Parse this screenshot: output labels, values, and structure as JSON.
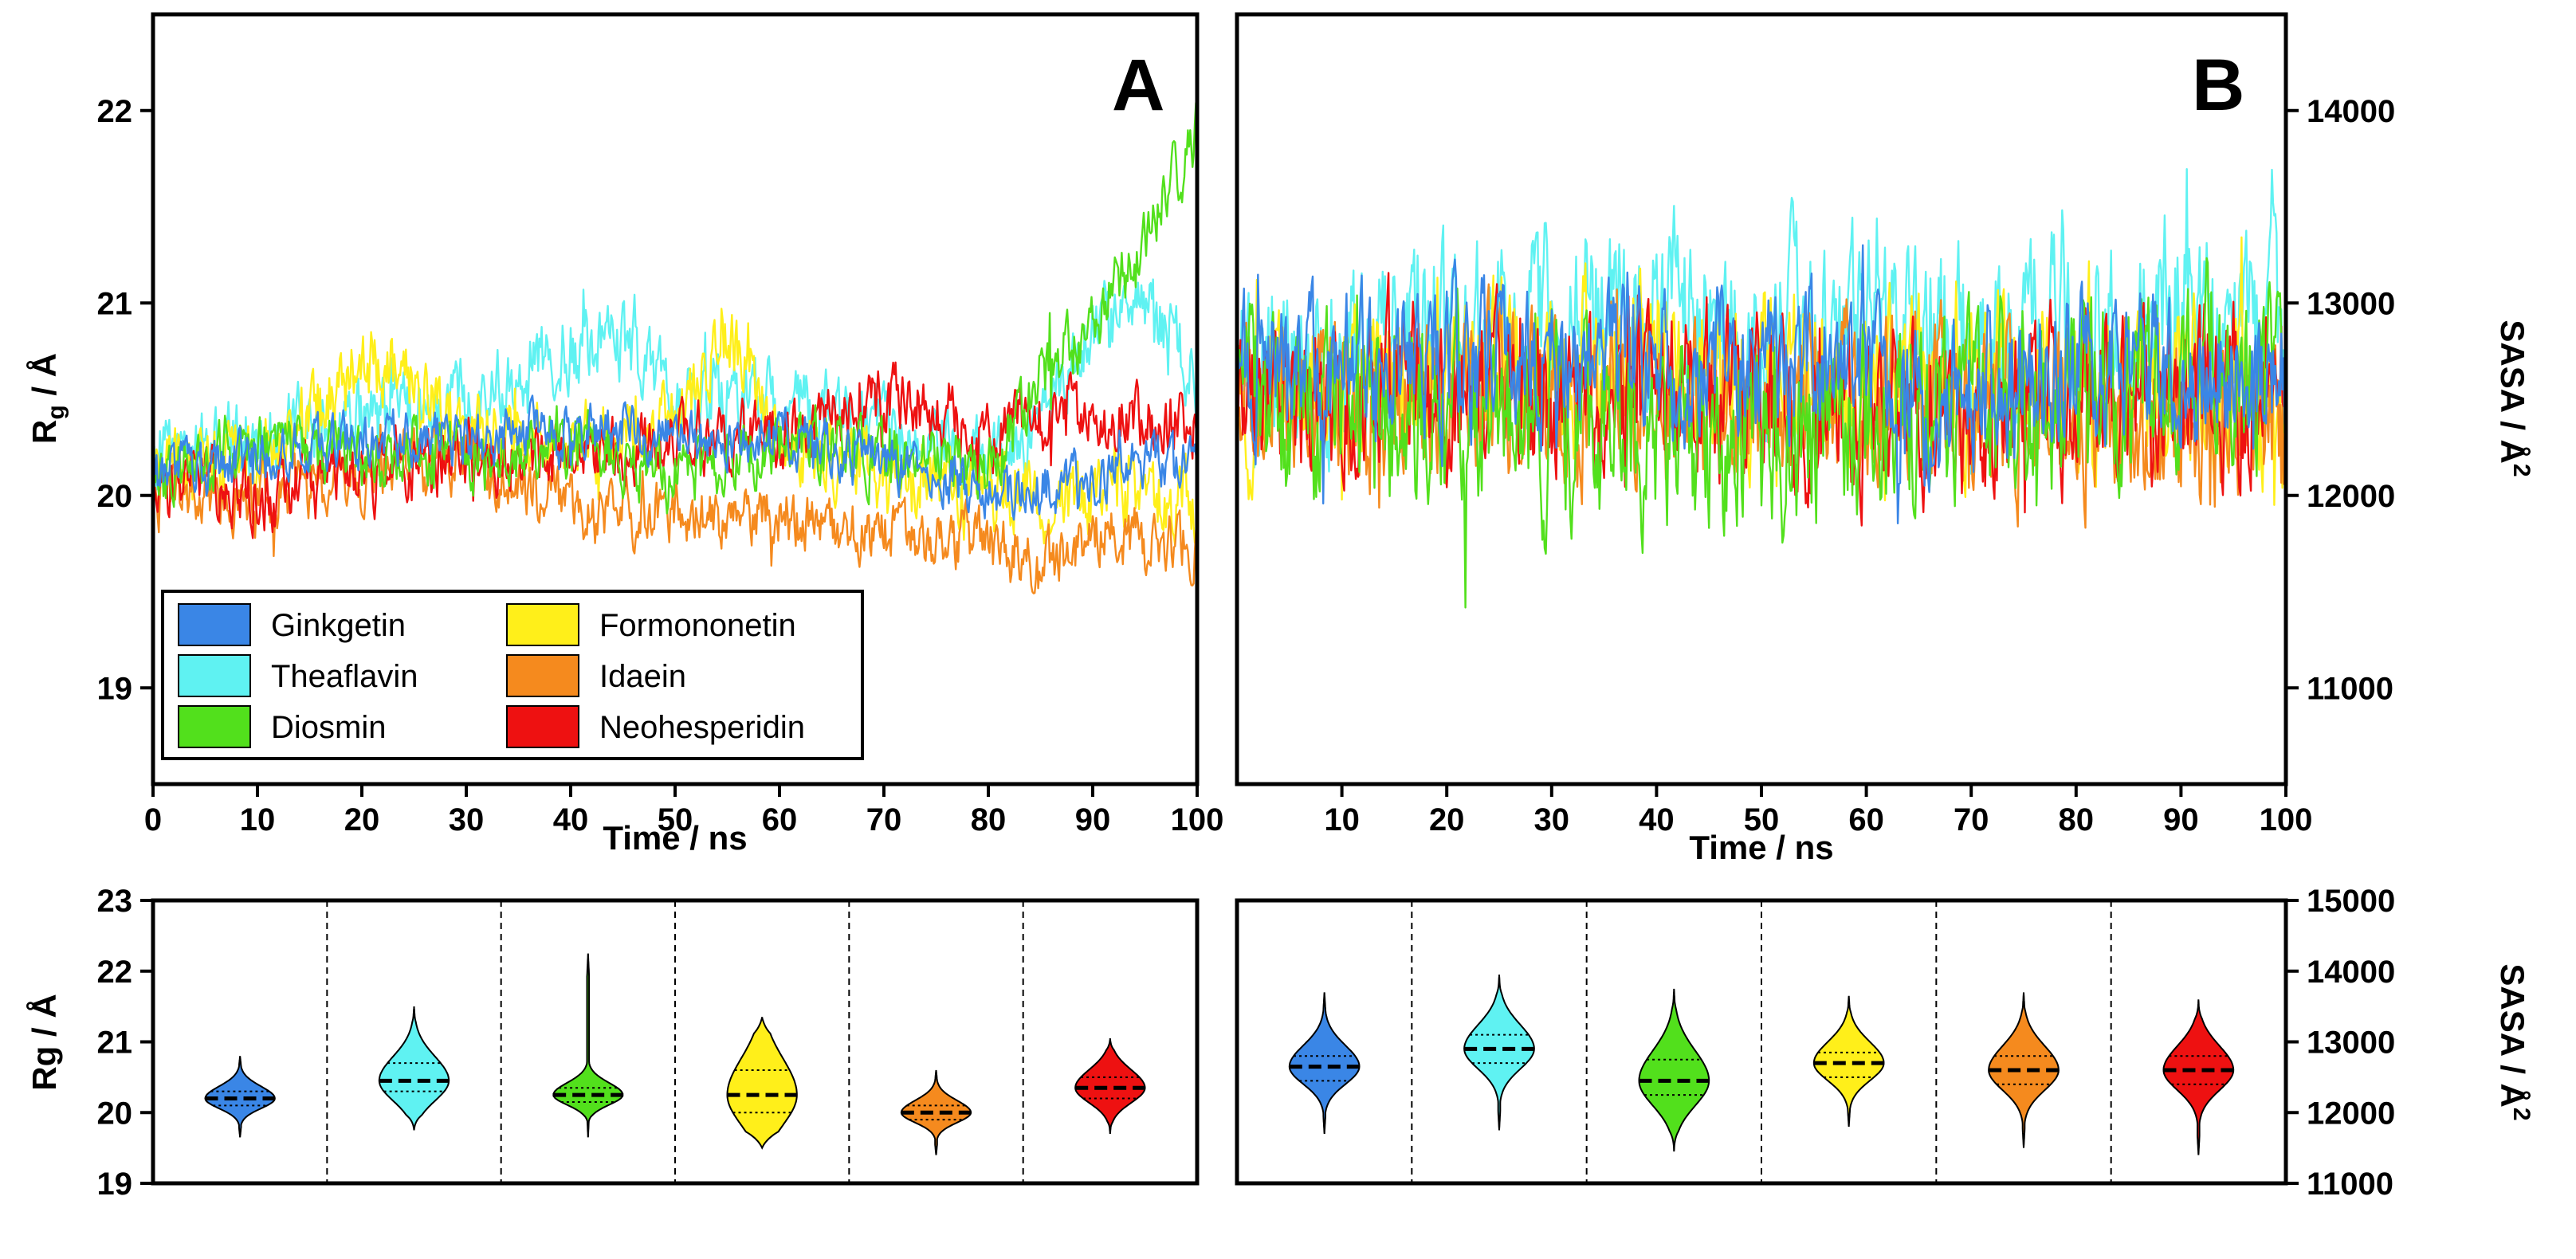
{
  "chart_data": [
    {
      "panel": "A",
      "type": "line",
      "panel_label": "A",
      "xlabel": "Time / ns",
      "ylabel_main": "R",
      "ylabel_sub": "g",
      "ylabel_rest": " / Å",
      "xlim": [
        0,
        100
      ],
      "ylim": [
        18.5,
        22.5
      ],
      "xticks": [
        "0",
        "10",
        "20",
        "30",
        "40",
        "50",
        "60",
        "70",
        "80",
        "90",
        "100"
      ],
      "yticks": [
        "19",
        "20",
        "21",
        "22"
      ],
      "legend_position": "bottom-left",
      "series": [
        {
          "name": "Theaflavin",
          "color": "#5ff2f2",
          "noise": 0.16,
          "keyframes": [
            [
              0,
              20.2
            ],
            [
              10,
              20.3
            ],
            [
              20,
              20.4
            ],
            [
              30,
              20.5
            ],
            [
              40,
              20.8
            ],
            [
              45,
              20.8
            ],
            [
              50,
              20.5
            ],
            [
              60,
              20.5
            ],
            [
              70,
              20.3
            ],
            [
              80,
              20.2
            ],
            [
              85,
              20.3
            ],
            [
              90,
              20.9
            ],
            [
              95,
              21.0
            ],
            [
              100,
              20.6
            ]
          ]
        },
        {
          "name": "Formononetin",
          "color": "#ffef1a",
          "noise": 0.16,
          "keyframes": [
            [
              0,
              20.1
            ],
            [
              10,
              20.2
            ],
            [
              15,
              20.4
            ],
            [
              20,
              20.7
            ],
            [
              25,
              20.6
            ],
            [
              30,
              20.3
            ],
            [
              40,
              20.3
            ],
            [
              50,
              20.4
            ],
            [
              55,
              20.8
            ],
            [
              60,
              20.3
            ],
            [
              70,
              20.1
            ],
            [
              80,
              20.0
            ],
            [
              90,
              20.0
            ],
            [
              100,
              20.0
            ]
          ]
        },
        {
          "name": "Idaein",
          "color": "#f58a1e",
          "noise": 0.13,
          "keyframes": [
            [
              0,
              20.0
            ],
            [
              10,
              20.0
            ],
            [
              20,
              20.1
            ],
            [
              30,
              20.2
            ],
            [
              40,
              19.9
            ],
            [
              50,
              19.9
            ],
            [
              60,
              19.9
            ],
            [
              70,
              19.8
            ],
            [
              80,
              19.75
            ],
            [
              85,
              19.6
            ],
            [
              90,
              19.8
            ],
            [
              100,
              19.75
            ]
          ]
        },
        {
          "name": "Neohesperidin",
          "color": "#ee1111",
          "noise": 0.14,
          "keyframes": [
            [
              0,
              20.1
            ],
            [
              10,
              20.0
            ],
            [
              20,
              20.1
            ],
            [
              30,
              20.2
            ],
            [
              40,
              20.2
            ],
            [
              50,
              20.3
            ],
            [
              60,
              20.3
            ],
            [
              70,
              20.5
            ],
            [
              75,
              20.4
            ],
            [
              80,
              20.3
            ],
            [
              85,
              20.4
            ],
            [
              90,
              20.4
            ],
            [
              100,
              20.4
            ]
          ]
        },
        {
          "name": "Diosmin",
          "color": "#52e01c",
          "noise": 0.14,
          "keyframes": [
            [
              0,
              20.1
            ],
            [
              10,
              20.3
            ],
            [
              20,
              20.2
            ],
            [
              30,
              20.2
            ],
            [
              40,
              20.3
            ],
            [
              50,
              20.1
            ],
            [
              60,
              20.3
            ],
            [
              70,
              20.2
            ],
            [
              80,
              20.1
            ],
            [
              85,
              20.6
            ],
            [
              90,
              20.9
            ],
            [
              95,
              21.3
            ],
            [
              100,
              21.9
            ]
          ]
        },
        {
          "name": "Ginkgetin",
          "color": "#3a86e6",
          "noise": 0.11,
          "keyframes": [
            [
              0,
              20.1
            ],
            [
              10,
              20.2
            ],
            [
              20,
              20.3
            ],
            [
              30,
              20.3
            ],
            [
              40,
              20.35
            ],
            [
              50,
              20.3
            ],
            [
              60,
              20.3
            ],
            [
              70,
              20.2
            ],
            [
              80,
              20.0
            ],
            [
              90,
              20.1
            ],
            [
              100,
              20.2
            ]
          ]
        }
      ]
    },
    {
      "panel": "B",
      "type": "line",
      "panel_label": "B",
      "xlabel": "Time / ns",
      "ylabel_main": "SASA / Å",
      "ylabel_sup": "2",
      "xlim": [
        0,
        100
      ],
      "ylim": [
        10500,
        14500
      ],
      "xticks": [
        "10",
        "20",
        "30",
        "40",
        "50",
        "60",
        "70",
        "80",
        "90",
        "100"
      ],
      "xtick_values": [
        10,
        20,
        30,
        40,
        50,
        60,
        70,
        80,
        90,
        100
      ],
      "yticks": [
        "11000",
        "12000",
        "13000",
        "14000"
      ],
      "series": [
        {
          "name": "Theaflavin",
          "color": "#5ff2f2",
          "noise": 380,
          "keyframes": [
            [
              0,
              12600
            ],
            [
              20,
              12800
            ],
            [
              40,
              12900
            ],
            [
              50,
              12850
            ],
            [
              60,
              12800
            ],
            [
              80,
              12800
            ],
            [
              90,
              13000
            ],
            [
              100,
              12800
            ]
          ]
        },
        {
          "name": "Formononetin",
          "color": "#ffef1a",
          "noise": 330,
          "keyframes": [
            [
              0,
              12500
            ],
            [
              20,
              12600
            ],
            [
              40,
              12700
            ],
            [
              60,
              12600
            ],
            [
              80,
              12600
            ],
            [
              100,
              12500
            ]
          ]
        },
        {
          "name": "Idaein",
          "color": "#f58a1e",
          "noise": 340,
          "keyframes": [
            [
              0,
              12500
            ],
            [
              20,
              12500
            ],
            [
              40,
              12500
            ],
            [
              60,
              12450
            ],
            [
              80,
              12450
            ],
            [
              100,
              12300
            ]
          ]
        },
        {
          "name": "Neohesperidin",
          "color": "#ee1111",
          "noise": 330,
          "keyframes": [
            [
              0,
              12500
            ],
            [
              20,
              12500
            ],
            [
              40,
              12500
            ],
            [
              60,
              12450
            ],
            [
              70,
              12350
            ],
            [
              80,
              12500
            ],
            [
              100,
              12600
            ]
          ]
        },
        {
          "name": "Diosmin",
          "color": "#52e01c",
          "noise": 370,
          "keyframes": [
            [
              0,
              12400
            ],
            [
              20,
              12400
            ],
            [
              40,
              12300
            ],
            [
              50,
              12250
            ],
            [
              60,
              12400
            ],
            [
              80,
              12500
            ],
            [
              90,
              12700
            ],
            [
              100,
              12600
            ]
          ]
        },
        {
          "name": "Ginkgetin",
          "color": "#3a86e6",
          "noise": 300,
          "keyframes": [
            [
              0,
              12600
            ],
            [
              20,
              12700
            ],
            [
              40,
              12700
            ],
            [
              50,
              12650
            ],
            [
              60,
              12700
            ],
            [
              65,
              12400
            ],
            [
              80,
              12700
            ],
            [
              100,
              12600
            ]
          ]
        }
      ]
    },
    {
      "panel": "A-violin",
      "type": "violin",
      "ylabel": "Rg / Å",
      "ylim": [
        19,
        23
      ],
      "yticks": [
        "19",
        "20",
        "21",
        "22",
        "23"
      ],
      "series": [
        {
          "name": "Ginkgetin",
          "color": "#3a86e6",
          "min": 19.65,
          "q1": 20.1,
          "median": 20.2,
          "q3": 20.3,
          "max": 20.8,
          "peak_width": 0.36
        },
        {
          "name": "Theaflavin",
          "color": "#5ff2f2",
          "min": 19.75,
          "q1": 20.3,
          "median": 20.45,
          "q3": 20.7,
          "max": 21.5,
          "peak_width": 0.26
        },
        {
          "name": "Diosmin",
          "color": "#52e01c",
          "min": 19.65,
          "q1": 20.15,
          "median": 20.25,
          "q3": 20.35,
          "max": 22.25,
          "peak_width": 0.34
        },
        {
          "name": "Formononetin",
          "color": "#ffef1a",
          "min": 19.5,
          "q1": 20.0,
          "median": 20.25,
          "q3": 20.6,
          "max": 21.35,
          "peak_width": 0.18
        },
        {
          "name": "Idaein",
          "color": "#f58a1e",
          "min": 19.4,
          "q1": 19.9,
          "median": 20.0,
          "q3": 20.1,
          "max": 20.6,
          "peak_width": 0.3
        },
        {
          "name": "Neohesperidin",
          "color": "#ee1111",
          "min": 19.7,
          "q1": 20.2,
          "median": 20.35,
          "q3": 20.5,
          "max": 21.05,
          "peak_width": 0.34
        }
      ]
    },
    {
      "panel": "B-violin",
      "type": "violin",
      "ylabel": "SASA / Å",
      "ylabel_sup": "2",
      "ylim": [
        11000,
        15000
      ],
      "yticks": [
        "11000",
        "12000",
        "13000",
        "14000",
        "15000"
      ],
      "series": [
        {
          "name": "Ginkgetin",
          "color": "#3a86e6",
          "min": 11700,
          "q1": 12450,
          "median": 12650,
          "q3": 12800,
          "max": 13700,
          "peak_width": 300
        },
        {
          "name": "Theaflavin",
          "color": "#5ff2f2",
          "min": 11750,
          "q1": 12700,
          "median": 12900,
          "q3": 13100,
          "max": 13950,
          "peak_width": 300
        },
        {
          "name": "Diosmin",
          "color": "#52e01c",
          "min": 11450,
          "q1": 12250,
          "median": 12450,
          "q3": 12750,
          "max": 13750,
          "peak_width": 380
        },
        {
          "name": "Formononetin",
          "color": "#ffef1a",
          "min": 11800,
          "q1": 12500,
          "median": 12700,
          "q3": 12850,
          "max": 13650,
          "peak_width": 300
        },
        {
          "name": "Idaein",
          "color": "#f58a1e",
          "min": 11500,
          "q1": 12400,
          "median": 12600,
          "q3": 12800,
          "max": 13700,
          "peak_width": 340
        },
        {
          "name": "Neohesperidin",
          "color": "#ee1111",
          "min": 11400,
          "q1": 12400,
          "median": 12600,
          "q3": 12800,
          "max": 13600,
          "peak_width": 320
        }
      ]
    }
  ],
  "legend": {
    "items": [
      {
        "name": "Ginkgetin",
        "color": "#3a86e6"
      },
      {
        "name": "Theaflavin",
        "color": "#5ff2f2"
      },
      {
        "name": "Diosmin",
        "color": "#52e01c"
      },
      {
        "name": "Formononetin",
        "color": "#ffef1a"
      },
      {
        "name": "Idaein",
        "color": "#f58a1e"
      },
      {
        "name": "Neohesperidin",
        "color": "#ee1111"
      }
    ]
  }
}
